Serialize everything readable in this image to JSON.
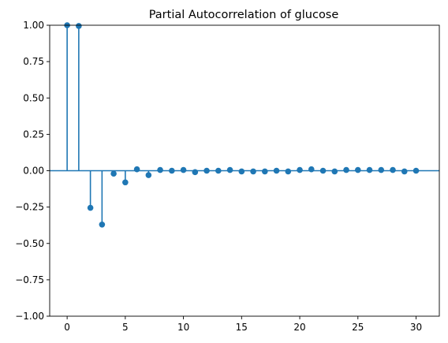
{
  "chart_data": {
    "type": "stem",
    "title": "Partial Autocorrelation of glucose",
    "xlabel": "",
    "ylabel": "",
    "xlim": [
      -1.5,
      32
    ],
    "ylim": [
      -1.0,
      1.0
    ],
    "x_ticks": [
      0,
      5,
      10,
      15,
      20,
      25,
      30
    ],
    "y_ticks": [
      1.0,
      0.75,
      0.5,
      0.25,
      0.0,
      -0.25,
      -0.5,
      -0.75,
      -1.0
    ],
    "x_tick_labels": [
      "0",
      "5",
      "10",
      "15",
      "20",
      "25",
      "30"
    ],
    "y_tick_labels": [
      "1.00",
      "0.75",
      "0.50",
      "0.25",
      "0.00",
      "−0.25",
      "−0.50",
      "−0.75",
      "−1.00"
    ],
    "grid": false,
    "legend": false,
    "color": "#1f77b4",
    "series": [
      {
        "x": [
          0,
          1,
          2,
          3,
          4,
          5,
          6,
          7,
          8,
          9,
          10,
          11,
          12,
          13,
          14,
          15,
          16,
          17,
          18,
          19,
          20,
          21,
          22,
          23,
          24,
          25,
          26,
          27,
          28,
          29,
          30
        ],
        "values": [
          1.0,
          0.995,
          -0.255,
          -0.37,
          -0.02,
          -0.08,
          0.01,
          -0.03,
          0.005,
          0.0,
          0.005,
          -0.01,
          0.0,
          0.0,
          0.005,
          -0.005,
          -0.005,
          -0.005,
          0.0,
          -0.005,
          0.005,
          0.01,
          0.0,
          -0.005,
          0.005,
          0.005,
          0.005,
          0.005,
          0.005,
          -0.005,
          0.0
        ]
      }
    ]
  }
}
